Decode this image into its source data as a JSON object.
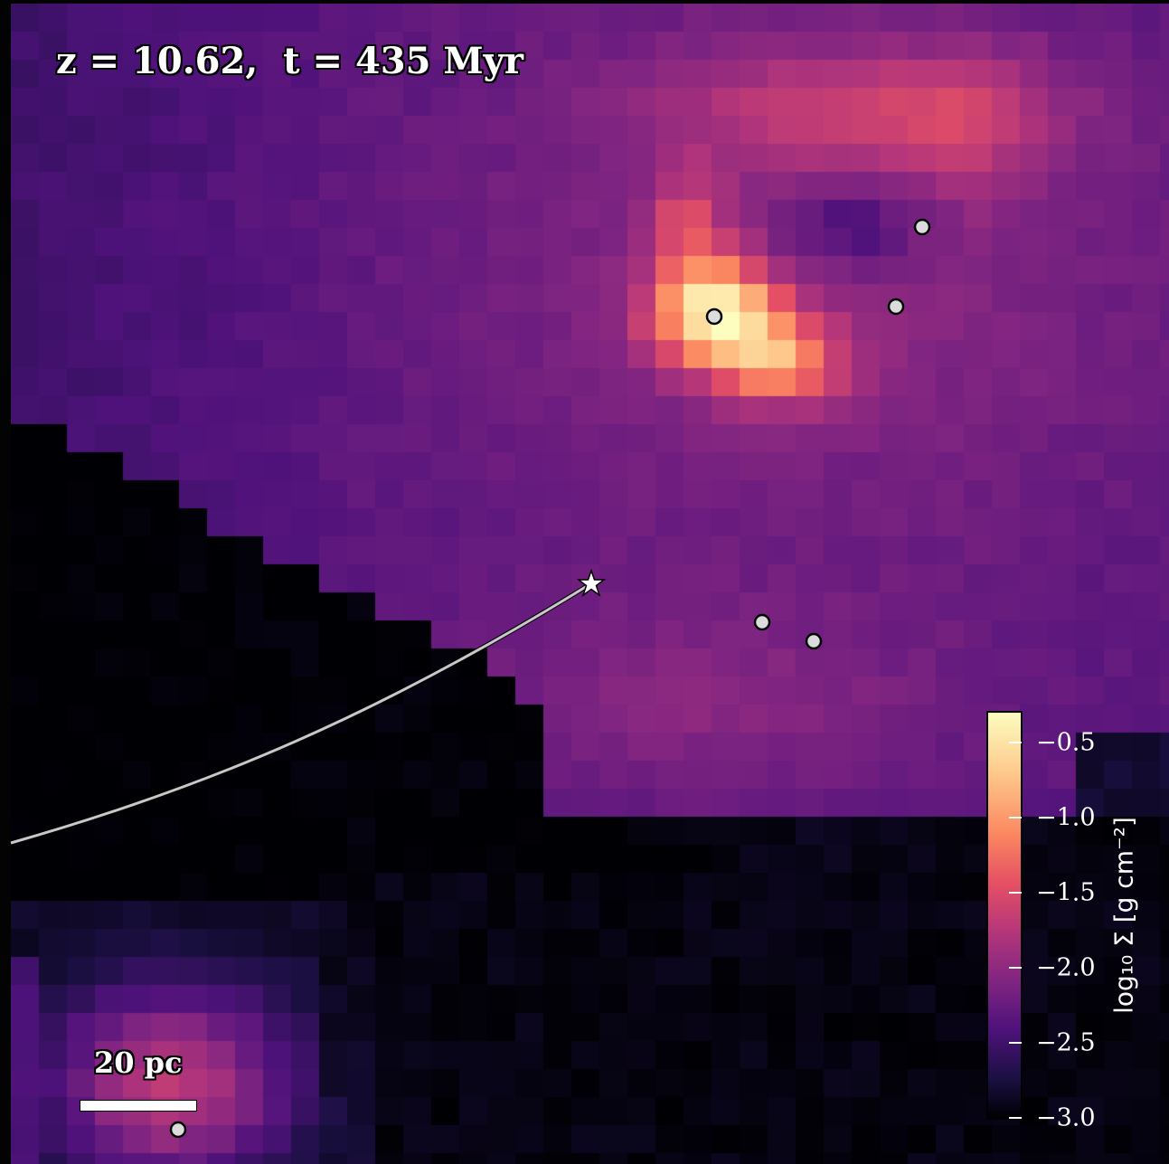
{
  "title": "z = 10.62,  t = 435 Myr",
  "scale_bar": {
    "label": "20 pc"
  },
  "colorbar": {
    "label": "log₁₀ Σ [g cm⁻²]",
    "colormap": "magma",
    "range": [
      -3.0,
      -0.3
    ],
    "ticks": [
      {
        "value": -0.5,
        "label": "−0.5"
      },
      {
        "value": -1.0,
        "label": "−1.0"
      },
      {
        "value": -1.5,
        "label": "−1.5"
      },
      {
        "value": -2.0,
        "label": "−2.0"
      },
      {
        "value": -2.5,
        "label": "−2.5"
      },
      {
        "value": -3.0,
        "label": "−3.0"
      }
    ]
  },
  "markers": {
    "particle_count": 7,
    "particle_style": "white circle with black outline",
    "star_marker": "white star at end of grey trajectory line",
    "trajectory_color": "#c8c8c8"
  },
  "background_color": "#030304"
}
